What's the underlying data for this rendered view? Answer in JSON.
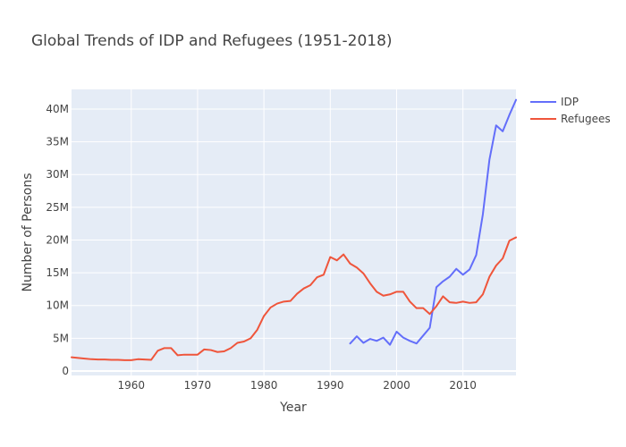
{
  "chart_data": {
    "type": "line",
    "title": "Global Trends of IDP and Refugees (1951-2018)",
    "xlabel": "Year",
    "ylabel": "Number of Persons",
    "xlim": [
      1951,
      2018
    ],
    "ylim": [
      0,
      43000000
    ],
    "x_ticks": [
      1960,
      1970,
      1980,
      1990,
      2000,
      2010
    ],
    "x_tick_labels": [
      "1960",
      "1970",
      "1980",
      "1990",
      "2000",
      "2010"
    ],
    "y_ticks": [
      0,
      5000000,
      10000000,
      15000000,
      20000000,
      25000000,
      30000000,
      35000000,
      40000000
    ],
    "y_tick_labels": [
      "0",
      "5M",
      "10M",
      "15M",
      "20M",
      "25M",
      "30M",
      "35M",
      "40M"
    ],
    "grid": true,
    "legend_position": "top-right",
    "series": [
      {
        "name": "IDP",
        "color": "#636efa",
        "x": [
          1993,
          1994,
          1995,
          1996,
          1997,
          1998,
          1999,
          2000,
          2001,
          2002,
          2003,
          2004,
          2005,
          2006,
          2007,
          2008,
          2009,
          2010,
          2011,
          2012,
          2013,
          2014,
          2015,
          2016,
          2017,
          2018
        ],
        "y": [
          4200000,
          5300000,
          4300000,
          4900000,
          4600000,
          5100000,
          4000000,
          6000000,
          5100000,
          4600000,
          4200000,
          5400000,
          6600000,
          12800000,
          13700000,
          14400000,
          15600000,
          14700000,
          15500000,
          17700000,
          23900000,
          32300000,
          37500000,
          36600000,
          39100000,
          41400000
        ]
      },
      {
        "name": "Refugees",
        "color": "#ef553b",
        "x": [
          1951,
          1952,
          1953,
          1954,
          1955,
          1956,
          1957,
          1958,
          1959,
          1960,
          1961,
          1962,
          1963,
          1964,
          1965,
          1966,
          1967,
          1968,
          1969,
          1970,
          1971,
          1972,
          1973,
          1974,
          1975,
          1976,
          1977,
          1978,
          1979,
          1980,
          1981,
          1982,
          1983,
          1984,
          1985,
          1986,
          1987,
          1988,
          1989,
          1990,
          1991,
          1992,
          1993,
          1994,
          1995,
          1996,
          1997,
          1998,
          1999,
          2000,
          2001,
          2002,
          2003,
          2004,
          2005,
          2006,
          2007,
          2008,
          2009,
          2010,
          2011,
          2012,
          2013,
          2014,
          2015,
          2016,
          2017,
          2018
        ],
        "y": [
          2100000,
          2000000,
          1900000,
          1800000,
          1750000,
          1750000,
          1700000,
          1700000,
          1650000,
          1650000,
          1800000,
          1750000,
          1700000,
          3100000,
          3500000,
          3500000,
          2400000,
          2500000,
          2500000,
          2500000,
          3300000,
          3200000,
          2900000,
          3000000,
          3500000,
          4300000,
          4500000,
          5000000,
          6300000,
          8400000,
          9700000,
          10300000,
          10600000,
          10700000,
          11800000,
          12600000,
          13100000,
          14300000,
          14700000,
          17400000,
          16900000,
          17800000,
          16400000,
          15800000,
          14900000,
          13400000,
          12100000,
          11500000,
          11700000,
          12100000,
          12100000,
          10600000,
          9600000,
          9600000,
          8700000,
          9900000,
          11400000,
          10500000,
          10400000,
          10600000,
          10400000,
          10500000,
          11700000,
          14400000,
          16100000,
          17200000,
          19900000,
          20400000
        ]
      }
    ]
  }
}
